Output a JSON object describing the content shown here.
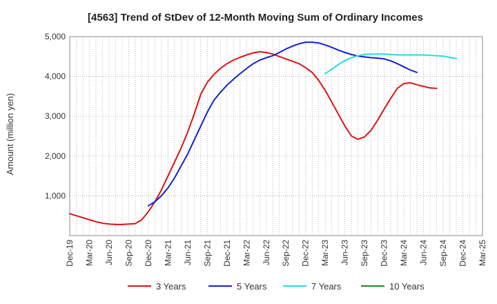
{
  "chart_data": {
    "type": "line",
    "title": "[4563]  Trend of StDev of 12-Month Moving Sum of Ordinary Incomes",
    "xlabel": "",
    "ylabel": "Amount (million yen)",
    "ylim": [
      0,
      5000
    ],
    "yticks": [
      1000,
      2000,
      3000,
      4000,
      5000
    ],
    "ytick_labels": [
      "1,000",
      "2,000",
      "3,000",
      "4,000",
      "5,000"
    ],
    "x_categories": [
      "Dec-19",
      "Mar-20",
      "Jun-20",
      "Sep-20",
      "Dec-20",
      "Mar-21",
      "Jun-21",
      "Sep-21",
      "Dec-21",
      "Mar-22",
      "Jun-22",
      "Sep-22",
      "Dec-22",
      "Mar-23",
      "Jun-23",
      "Sep-23",
      "Dec-23",
      "Mar-24",
      "Jun-24",
      "Sep-24",
      "Dec-24",
      "Mar-25"
    ],
    "grid": true,
    "legend_position": "bottom",
    "series": [
      {
        "name": "3 Years",
        "color": "#dd1111",
        "start_index": 0,
        "values": [
          550,
          500,
          450,
          400,
          350,
          310,
          290,
          280,
          280,
          290,
          300,
          400,
          600,
          850,
          1150,
          1500,
          1850,
          2200,
          2600,
          3050,
          3550,
          3850,
          4050,
          4200,
          4320,
          4410,
          4480,
          4540,
          4590,
          4620,
          4600,
          4560,
          4500,
          4440,
          4380,
          4320,
          4220,
          4100,
          3900,
          3650,
          3350,
          3050,
          2750,
          2500,
          2420,
          2480,
          2650,
          2900,
          3180,
          3450,
          3700,
          3820,
          3840,
          3790,
          3750,
          3710,
          3700
        ]
      },
      {
        "name": "5 Years",
        "color": "#1122cc",
        "start_index": 12,
        "values": [
          750,
          850,
          1000,
          1200,
          1450,
          1750,
          2050,
          2400,
          2750,
          3100,
          3400,
          3600,
          3780,
          3930,
          4070,
          4200,
          4320,
          4410,
          4470,
          4520,
          4600,
          4690,
          4760,
          4820,
          4860,
          4860,
          4840,
          4790,
          4730,
          4660,
          4600,
          4550,
          4510,
          4490,
          4470,
          4460,
          4440,
          4390,
          4320,
          4240,
          4160,
          4100
        ]
      },
      {
        "name": "7 Years",
        "color": "#22dddd",
        "start_index": 39,
        "values": [
          4070,
          4180,
          4300,
          4400,
          4470,
          4520,
          4550,
          4560,
          4560,
          4560,
          4550,
          4540,
          4540,
          4540,
          4540,
          4540,
          4530,
          4520,
          4510,
          4480,
          4450
        ]
      },
      {
        "name": "10 Years",
        "color": "#228822",
        "start_index": 0,
        "values": []
      }
    ]
  }
}
